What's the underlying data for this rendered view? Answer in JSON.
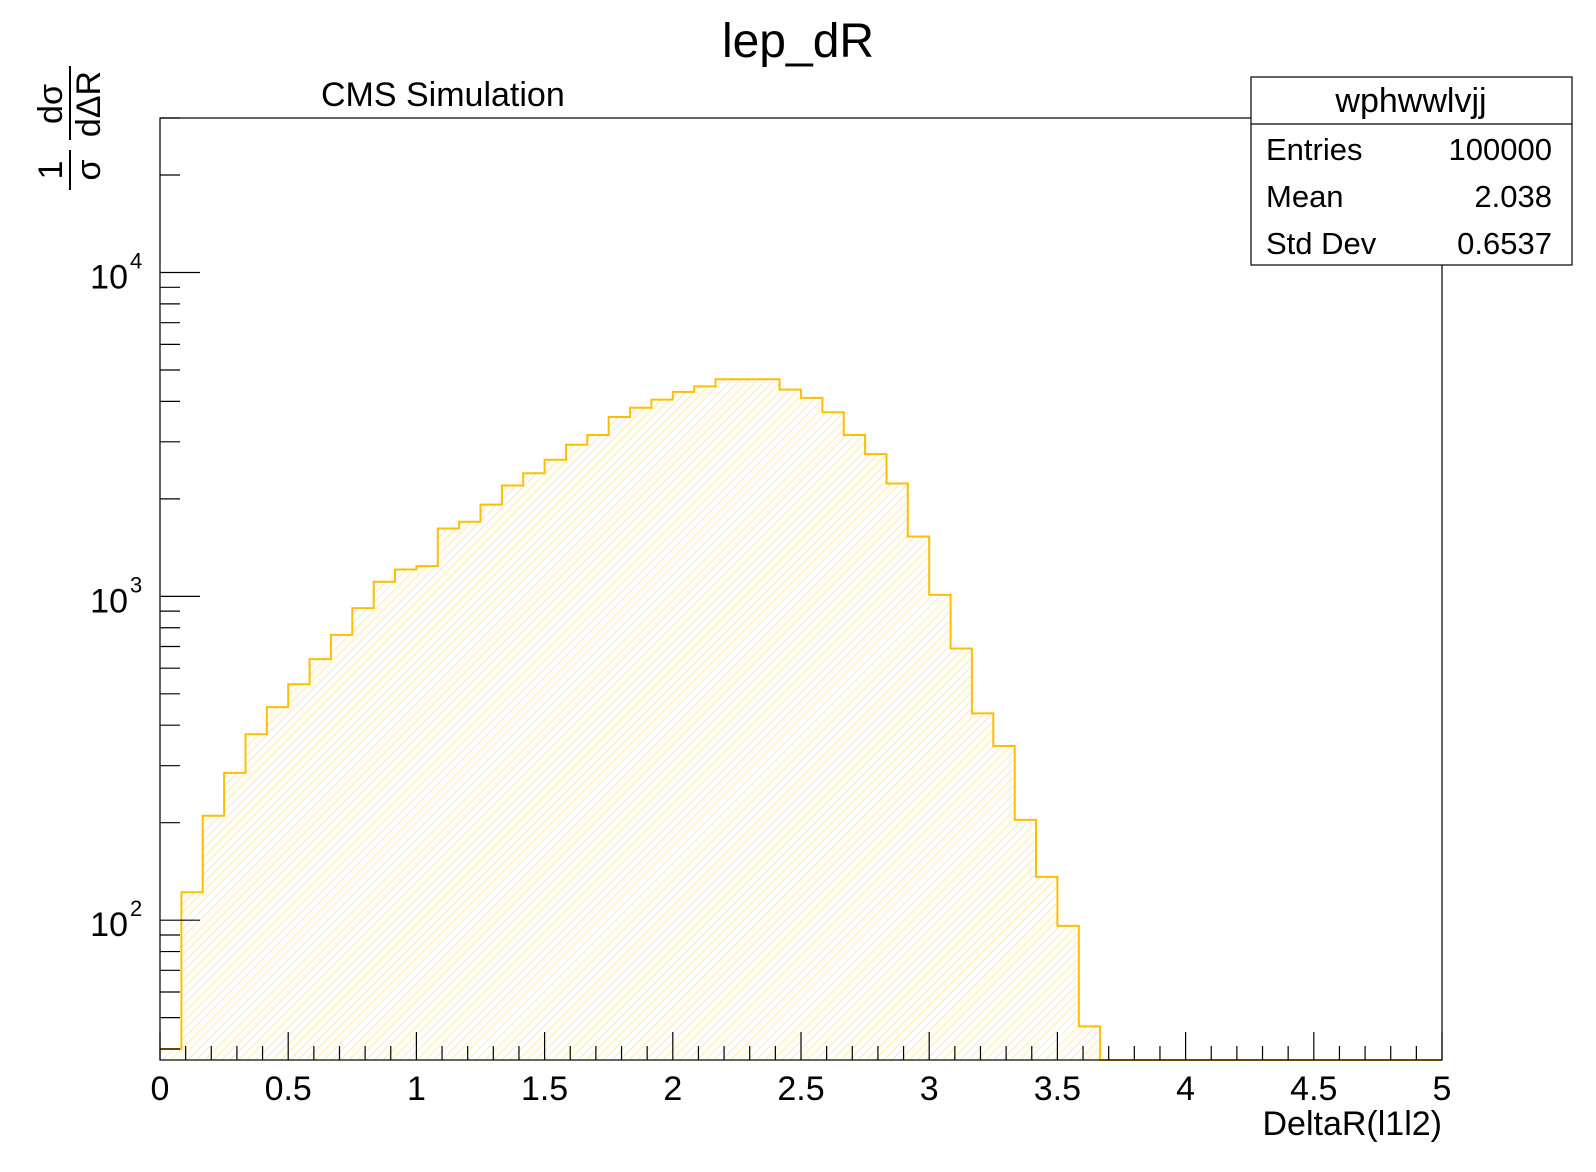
{
  "chart_data": {
    "type": "histogram",
    "title": "lep_dR",
    "label": "CMS Simulation",
    "xlabel": "DeltaR(l1l2)",
    "ylabel": {
      "num1": "1",
      "den1": "σ",
      "num2": "dσ",
      "den2": "dΔR"
    },
    "xlim": [
      0,
      5
    ],
    "ylim": [
      37,
      30000
    ],
    "yscale": "log",
    "x_ticks": [
      "0",
      "0.5",
      "1",
      "1.5",
      "2",
      "2.5",
      "3",
      "3.5",
      "4",
      "4.5",
      "5"
    ],
    "y_ticks": [
      {
        "value": 100,
        "base": "10",
        "exp": "2"
      },
      {
        "value": 1000,
        "base": "10",
        "exp": "3"
      },
      {
        "value": 10000,
        "base": "10",
        "exp": "4"
      }
    ],
    "bin_width": 0.08333,
    "values": [
      40,
      122,
      210,
      285,
      375,
      455,
      535,
      640,
      760,
      920,
      1110,
      1210,
      1240,
      1620,
      1700,
      1920,
      2200,
      2400,
      2640,
      2940,
      3150,
      3580,
      3820,
      4050,
      4280,
      4450,
      4680,
      4680,
      4680,
      4350,
      4100,
      3700,
      3150,
      2750,
      2230,
      1530,
      1010,
      690,
      435,
      345,
      204,
      136,
      96,
      47,
      0,
      0,
      0,
      0,
      0,
      0,
      0,
      0,
      0,
      0,
      0,
      0,
      0,
      0,
      0,
      0
    ],
    "colors": {
      "line": "#ffbf00",
      "fill": "#ffde8a",
      "axis": "#000000"
    },
    "stats": {
      "name": "wphwwlvjj",
      "rows": [
        {
          "label": "Entries",
          "value": "100000"
        },
        {
          "label": "Mean",
          "value": "2.038"
        },
        {
          "label": "Std Dev",
          "value": "0.6537"
        }
      ]
    }
  }
}
